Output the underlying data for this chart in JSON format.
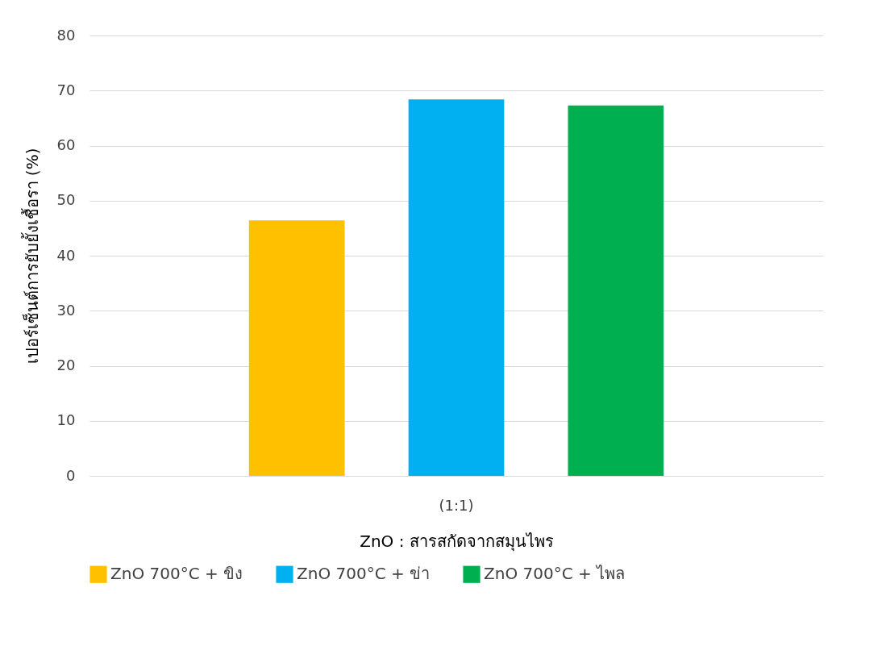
{
  "chart_data": {
    "type": "bar",
    "xlabel": "ZnO : สารสกัดจากสมุนไพร",
    "ylabel": "เปอร์เซ็นต์การยับยั้งเชื้อรา (%)",
    "categories": [
      "(1:1)"
    ],
    "series": [
      {
        "name": "ZnO 700°C + ขิง",
        "color": "#ffc000",
        "values": [
          46.4
        ]
      },
      {
        "name": "ZnO 700°C + ข่า",
        "color": "#00b0f0",
        "values": [
          68.4
        ]
      },
      {
        "name": "ZnO 700°C + ไพล",
        "color": "#00b050",
        "values": [
          67.3
        ]
      }
    ],
    "ylim": [
      0,
      80
    ],
    "yticks": [
      0,
      10,
      20,
      30,
      40,
      50,
      60,
      70,
      80
    ],
    "grid": "y",
    "legend": "bottom"
  }
}
